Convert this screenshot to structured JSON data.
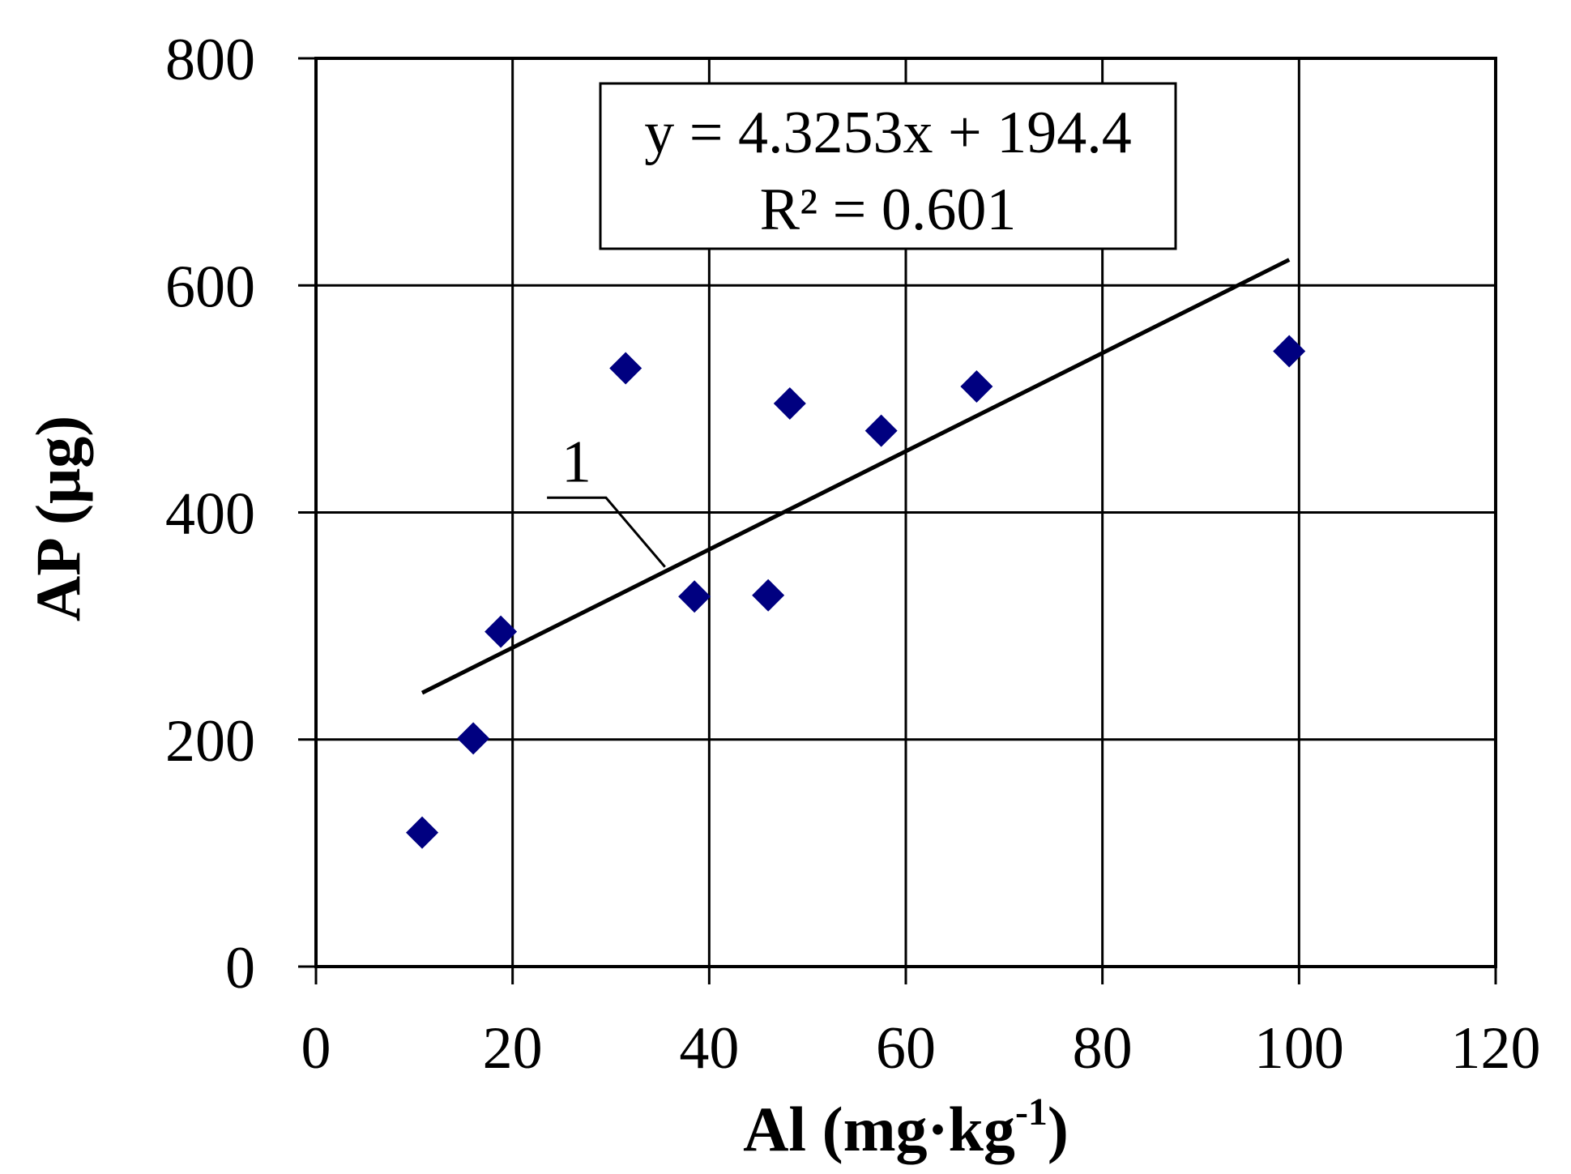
{
  "chart_data": {
    "type": "scatter",
    "xlabel": "Al (mg·kg",
    "xlabel_sup": "-1",
    "xlabel_close": ")",
    "ylabel": "AP (μg)",
    "xlim": [
      0,
      120
    ],
    "ylim": [
      0,
      800
    ],
    "x_ticks": [
      0,
      20,
      40,
      60,
      80,
      100,
      120
    ],
    "y_ticks": [
      0,
      200,
      400,
      600,
      800
    ],
    "x_tick_labels": [
      "0",
      "20",
      "40",
      "60",
      "80",
      "100",
      "120"
    ],
    "y_tick_labels": [
      "0",
      "200",
      "400",
      "600",
      "800"
    ],
    "grid": true,
    "legend": "none",
    "series": [
      {
        "marker": "diamond",
        "color": "#000080",
        "points": [
          {
            "x": 10.8,
            "y": 118
          },
          {
            "x": 16.0,
            "y": 201
          },
          {
            "x": 18.8,
            "y": 295
          },
          {
            "x": 31.5,
            "y": 527
          },
          {
            "x": 38.5,
            "y": 326
          },
          {
            "x": 46.0,
            "y": 327
          },
          {
            "x": 48.2,
            "y": 496
          },
          {
            "x": 57.5,
            "y": 472
          },
          {
            "x": 67.2,
            "y": 511
          },
          {
            "x": 99.0,
            "y": 542
          }
        ]
      }
    ],
    "trendline": {
      "slope": 4.3253,
      "intercept": 194.4,
      "x_range": [
        10.8,
        99.0
      ],
      "color": "#000000"
    },
    "equation_box": {
      "line1": "y = 4.3253x + 194.4",
      "line2": "R² = 0.601"
    },
    "annotation": {
      "text": "1",
      "label_at": [
        26.5,
        445
      ],
      "leader_from": [
        23.5,
        413
      ],
      "leader_bend": [
        29.5,
        413
      ],
      "leader_to": [
        35.5,
        352
      ]
    }
  }
}
